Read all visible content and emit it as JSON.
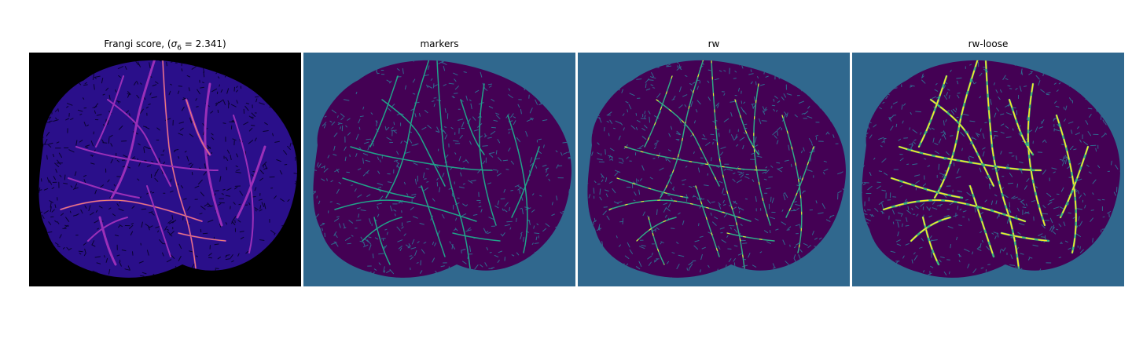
{
  "figure": {
    "panels": [
      {
        "title_prefix": "Frangi score, (",
        "sigma_symbol": "σ",
        "sigma_sub": "6",
        "sigma_value": " = 2.341)",
        "colors": {
          "background": "#000000",
          "fill": "#2a0f8a",
          "dark": "#0a0330",
          "vessel": "#9a2fb8",
          "vessel_hot": "#f28a6a"
        },
        "style": "frangi"
      },
      {
        "title": "markers",
        "colors": {
          "background": "#30688e",
          "fill": "#440154",
          "net": "#30688e",
          "vessel": "#21a38a"
        },
        "style": "markers"
      },
      {
        "title": "rw",
        "colors": {
          "background": "#30688e",
          "fill": "#440154",
          "net": "#30688e",
          "vessel": "#30a887",
          "highlight": "#fde725"
        },
        "style": "rw"
      },
      {
        "title": "rw-loose",
        "colors": {
          "background": "#30688e",
          "fill": "#440154",
          "net": "#30688e",
          "vessel": "#3bb67e",
          "highlight": "#fde725"
        },
        "style": "loose"
      }
    ]
  }
}
